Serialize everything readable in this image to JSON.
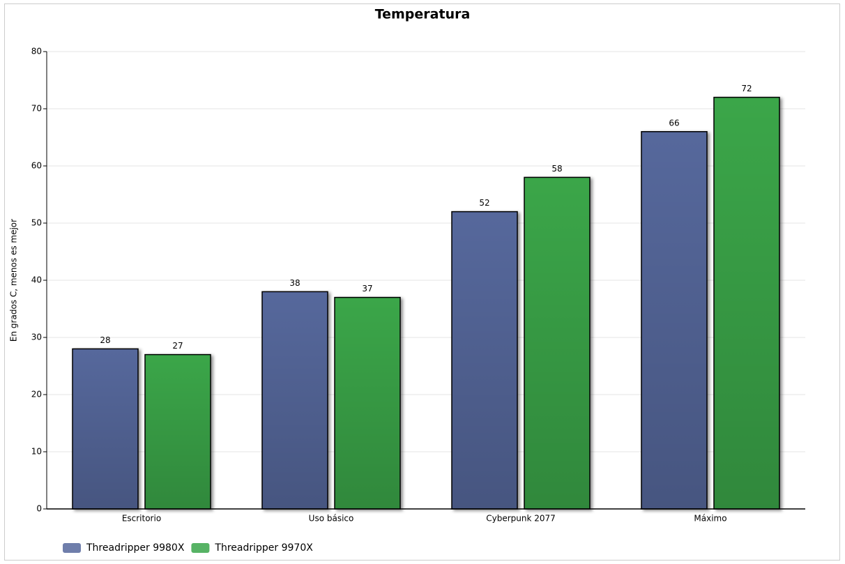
{
  "chart_data": {
    "type": "bar",
    "title": "Temperatura",
    "y_label": "En grados C, menos es mejor",
    "categories": [
      "Escritorio",
      "Uso básico",
      "Cyberpunk 2077",
      "Máximo"
    ],
    "series": [
      {
        "name": "Threadripper 9980X",
        "color": "#56679c",
        "values": [
          28,
          38,
          52,
          66
        ]
      },
      {
        "name": "Threadripper 9970X",
        "color": "#3aa64a",
        "values": [
          27,
          37,
          58,
          72
        ]
      }
    ],
    "ylim": [
      0,
      80
    ],
    "yticks": [
      0,
      10,
      20,
      30,
      40,
      50,
      60,
      70,
      80
    ],
    "grid": true,
    "legend": "bottom-left"
  }
}
